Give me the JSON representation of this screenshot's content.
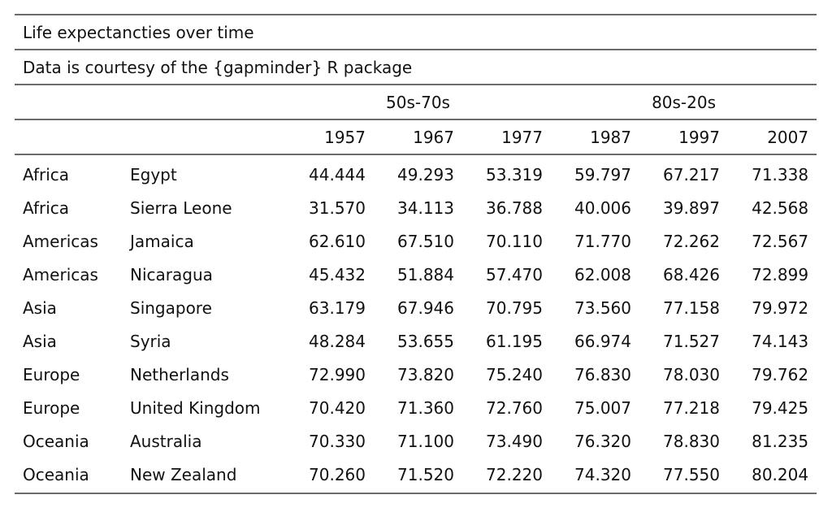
{
  "table": {
    "title": "Life expectancties over time",
    "subtitle": "Data is courtesy of the {gapminder} R package",
    "spanners": [
      "50s-70s",
      "80s-20s"
    ],
    "years": [
      "1957",
      "1967",
      "1977",
      "1987",
      "1997",
      "2007"
    ],
    "rows": [
      {
        "region": "Africa",
        "country": "Egypt",
        "values": [
          "44.444",
          "49.293",
          "53.319",
          "59.797",
          "67.217",
          "71.338"
        ]
      },
      {
        "region": "Africa",
        "country": "Sierra Leone",
        "values": [
          "31.570",
          "34.113",
          "36.788",
          "40.006",
          "39.897",
          "42.568"
        ]
      },
      {
        "region": "Americas",
        "country": "Jamaica",
        "values": [
          "62.610",
          "67.510",
          "70.110",
          "71.770",
          "72.262",
          "72.567"
        ]
      },
      {
        "region": "Americas",
        "country": "Nicaragua",
        "values": [
          "45.432",
          "51.884",
          "57.470",
          "62.008",
          "68.426",
          "72.899"
        ]
      },
      {
        "region": "Asia",
        "country": "Singapore",
        "values": [
          "63.179",
          "67.946",
          "70.795",
          "73.560",
          "77.158",
          "79.972"
        ]
      },
      {
        "region": "Asia",
        "country": "Syria",
        "values": [
          "48.284",
          "53.655",
          "61.195",
          "66.974",
          "71.527",
          "74.143"
        ]
      },
      {
        "region": "Europe",
        "country": "Netherlands",
        "values": [
          "72.990",
          "73.820",
          "75.240",
          "76.830",
          "78.030",
          "79.762"
        ]
      },
      {
        "region": "Europe",
        "country": "United Kingdom",
        "values": [
          "70.420",
          "71.360",
          "72.760",
          "75.007",
          "77.218",
          "79.425"
        ]
      },
      {
        "region": "Oceania",
        "country": "Australia",
        "values": [
          "70.330",
          "71.100",
          "73.490",
          "76.320",
          "78.830",
          "81.235"
        ]
      },
      {
        "region": "Oceania",
        "country": "New Zealand",
        "values": [
          "70.260",
          "71.520",
          "72.220",
          "74.320",
          "77.550",
          "80.204"
        ]
      }
    ]
  }
}
